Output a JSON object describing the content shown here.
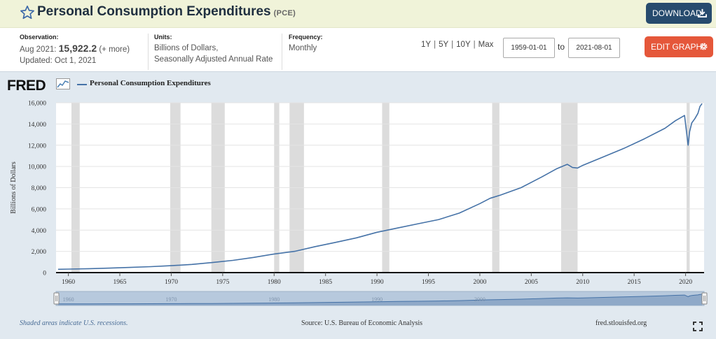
{
  "header": {
    "title": "Personal Consumption Expenditures",
    "series_code": "(PCE)",
    "download_label": "DOWNLOAD"
  },
  "observation": {
    "label": "Observation:",
    "date": "Aug 2021:",
    "value": "15,922.2",
    "more": "(+ more)",
    "updated": "Updated: Oct 1, 2021"
  },
  "units": {
    "label": "Units:",
    "line1": "Billions of Dollars,",
    "line2": "Seasonally Adjusted Annual Rate"
  },
  "frequency": {
    "label": "Frequency:",
    "value": "Monthly"
  },
  "range_buttons": [
    "1Y",
    "5Y",
    "10Y",
    "Max"
  ],
  "date_range": {
    "start": "1959-01-01",
    "to_label": "to",
    "end": "2021-08-01"
  },
  "edit_label": "EDIT GRAPH",
  "chart": {
    "logo": "FRED",
    "legend": "Personal Consumption Expenditures",
    "y_axis_title": "Billions of Dollars",
    "navigator_labels": [
      "1960",
      "1970",
      "1980",
      "1990",
      "2000"
    ]
  },
  "footer": {
    "recession_note": "Shaded areas indicate U.S. recessions.",
    "source": "Source: U.S. Bureau of Economic Analysis",
    "site": "fred.stlouisfed.org"
  },
  "colors": {
    "line": "#4572a7",
    "recession": "#dcdcdc",
    "download": "#274b6e",
    "edit": "#e5573a"
  },
  "chart_data": {
    "type": "line",
    "title": "Personal Consumption Expenditures",
    "xlabel": "",
    "ylabel": "Billions of Dollars",
    "xlim": [
      1958.8,
      2021.8
    ],
    "ylim": [
      0,
      16000
    ],
    "y_ticks": [
      0,
      2000,
      4000,
      6000,
      8000,
      10000,
      12000,
      14000,
      16000
    ],
    "y_tick_labels": [
      "0",
      "2,000",
      "4,000",
      "6,000",
      "8,000",
      "10,000",
      "12,000",
      "14,000",
      "16,000"
    ],
    "x_ticks": [
      1960,
      1965,
      1970,
      1975,
      1980,
      1985,
      1990,
      1995,
      2000,
      2005,
      2010,
      2015,
      2020
    ],
    "x_tick_labels": [
      "1960",
      "1965",
      "1970",
      "1975",
      "1980",
      "1985",
      "1990",
      "1995",
      "2000",
      "2005",
      "2010",
      "2015",
      "2020"
    ],
    "recessions": [
      [
        1960.3,
        1961.1
      ],
      [
        1969.9,
        1970.9
      ],
      [
        1973.9,
        1975.2
      ],
      [
        1980.0,
        1980.5
      ],
      [
        1981.5,
        1982.9
      ],
      [
        1990.5,
        1991.2
      ],
      [
        2001.2,
        2001.9
      ],
      [
        2007.9,
        2009.5
      ],
      [
        2020.1,
        2020.4
      ]
    ],
    "series": [
      {
        "name": "Personal Consumption Expenditures",
        "x": [
          1959,
          1960,
          1962,
          1964,
          1966,
          1968,
          1970,
          1972,
          1974,
          1976,
          1978,
          1980,
          1982,
          1984,
          1986,
          1988,
          1990,
          1992,
          1994,
          1996,
          1998,
          2000,
          2001,
          2002,
          2004,
          2006,
          2007.5,
          2008.5,
          2009.0,
          2009.5,
          2010,
          2012,
          2014,
          2016,
          2018,
          2019,
          2019.9,
          2020.25,
          2020.4,
          2020.6,
          2020.9,
          2021.2,
          2021.4,
          2021.6
        ],
        "values": [
          310,
          330,
          370,
          420,
          490,
          560,
          650,
          770,
          950,
          1150,
          1430,
          1750,
          2000,
          2450,
          2850,
          3270,
          3800,
          4200,
          4600,
          5000,
          5600,
          6500,
          7000,
          7300,
          8000,
          9000,
          9800,
          10200,
          9900,
          9850,
          10100,
          10900,
          11700,
          12600,
          13600,
          14300,
          14800,
          12000,
          13300,
          14100,
          14500,
          15000,
          15650,
          15922
        ]
      }
    ]
  }
}
